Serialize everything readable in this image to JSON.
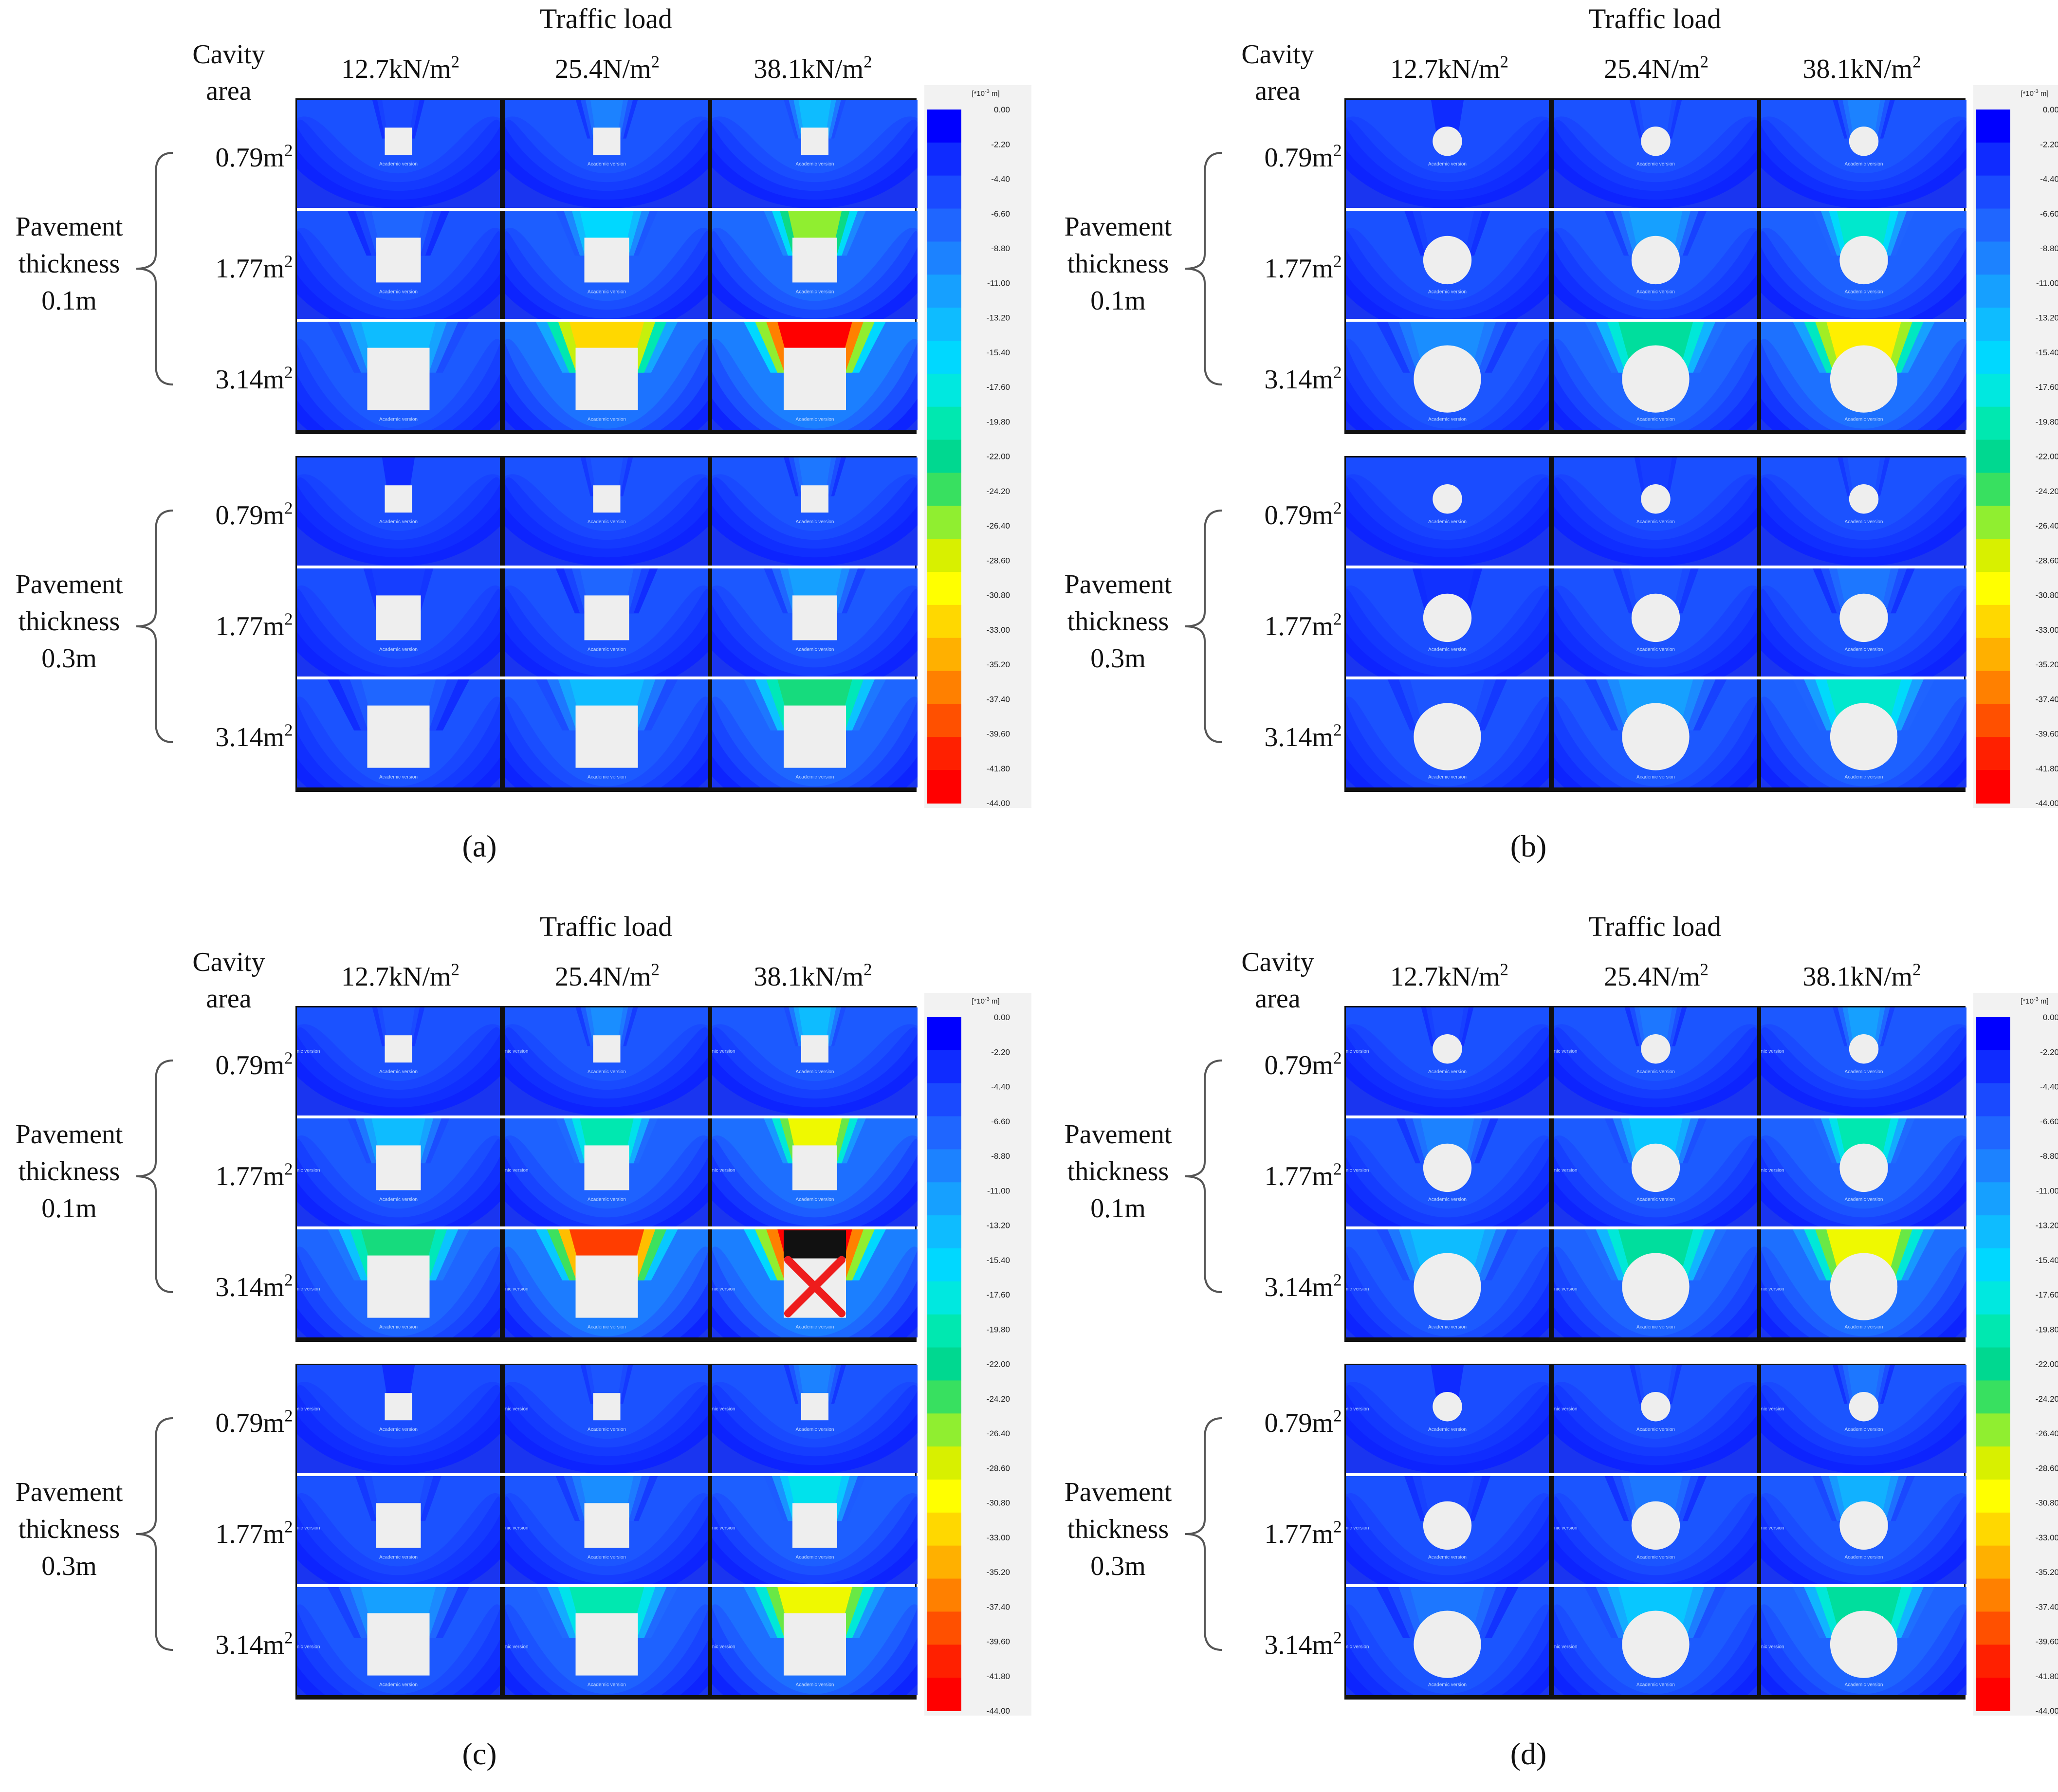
{
  "figure": {
    "header_title": "Traffic load",
    "cavity_header": [
      "Cavity",
      "area"
    ],
    "loads": [
      {
        "value": "12.7kN/m",
        "sup": "2"
      },
      {
        "value": "25.4N/m",
        "sup": "2"
      },
      {
        "value": "38.1kN/m",
        "sup": "2"
      }
    ],
    "cavity_areas": [
      {
        "value": "0.79m",
        "sup": "2"
      },
      {
        "value": "1.77m",
        "sup": "2"
      },
      {
        "value": "3.14m",
        "sup": "2"
      }
    ],
    "pavement_groups": [
      {
        "lines": [
          "Pavement",
          "thickness",
          "0.1m"
        ]
      },
      {
        "lines": [
          "Pavement",
          "thickness",
          "0.3m"
        ]
      }
    ],
    "watermark": "Academic version",
    "panels": [
      {
        "id": "a",
        "label": "(a)",
        "cavity_shape": "square",
        "watermark_side": false,
        "stress": [
          [
            [
              0.1,
              0.2,
              0.3
            ],
            [
              0.15,
              0.35,
              0.6
            ],
            [
              0.3,
              0.75,
              1.0
            ]
          ],
          [
            [
              0.05,
              0.12,
              0.18
            ],
            [
              0.08,
              0.15,
              0.25
            ],
            [
              0.15,
              0.3,
              0.52
            ]
          ]
        ],
        "failure_cells": []
      },
      {
        "id": "b",
        "label": "(b)",
        "cavity_shape": "circle",
        "watermark_side": false,
        "stress": [
          [
            [
              0.05,
              0.12,
              0.2
            ],
            [
              0.1,
              0.25,
              0.42
            ],
            [
              0.22,
              0.48,
              0.72
            ]
          ],
          [
            [
              0.03,
              0.08,
              0.12
            ],
            [
              0.06,
              0.12,
              0.18
            ],
            [
              0.12,
              0.25,
              0.42
            ]
          ]
        ],
        "failure_cells": []
      },
      {
        "id": "c",
        "label": "(c)",
        "cavity_shape": "square",
        "watermark_side": true,
        "stress": [
          [
            [
              0.12,
              0.22,
              0.3
            ],
            [
              0.3,
              0.45,
              0.68
            ],
            [
              0.52,
              0.92,
              1.0
            ]
          ],
          [
            [
              0.05,
              0.12,
              0.2
            ],
            [
              0.12,
              0.22,
              0.38
            ],
            [
              0.25,
              0.45,
              0.68
            ]
          ]
        ],
        "failure_cells": [
          {
            "group": 0,
            "row": 2,
            "col": 2
          }
        ]
      },
      {
        "id": "d",
        "label": "(d)",
        "cavity_shape": "circle",
        "watermark_side": true,
        "stress": [
          [
            [
              0.1,
              0.18,
              0.25
            ],
            [
              0.2,
              0.32,
              0.45
            ],
            [
              0.3,
              0.48,
              0.68
            ]
          ],
          [
            [
              0.05,
              0.12,
              0.18
            ],
            [
              0.1,
              0.18,
              0.28
            ],
            [
              0.18,
              0.32,
              0.48
            ]
          ]
        ],
        "failure_cells": []
      }
    ],
    "legend": {
      "unit": "[*10",
      "unit_exp": "-3",
      "unit_tail": " m]",
      "ticks": [
        "0.00",
        "-2.20",
        "-4.40",
        "-6.60",
        "-8.80",
        "-11.00",
        "-13.20",
        "-15.40",
        "-17.60",
        "-19.80",
        "-22.00",
        "-24.20",
        "-26.40",
        "-28.60",
        "-30.80",
        "-33.00",
        "-35.20",
        "-37.40",
        "-39.60",
        "-41.80",
        "-44.00"
      ],
      "colors": [
        "#0000ff",
        "#0f2bff",
        "#1a4aff",
        "#1f66ff",
        "#1c82ff",
        "#16a0ff",
        "#0ebcff",
        "#00d8ff",
        "#00e8e0",
        "#00e8b0",
        "#00d890",
        "#38e060",
        "#90ee30",
        "#d8f000",
        "#ffff00",
        "#ffd800",
        "#ffb000",
        "#ff8000",
        "#ff5000",
        "#ff2000",
        "#ff0000"
      ]
    },
    "colors": {
      "background": "#1a35f0",
      "cavity": "#eeeeee",
      "failure_x": "#ee1c1c",
      "failure_box": "#111111"
    }
  }
}
